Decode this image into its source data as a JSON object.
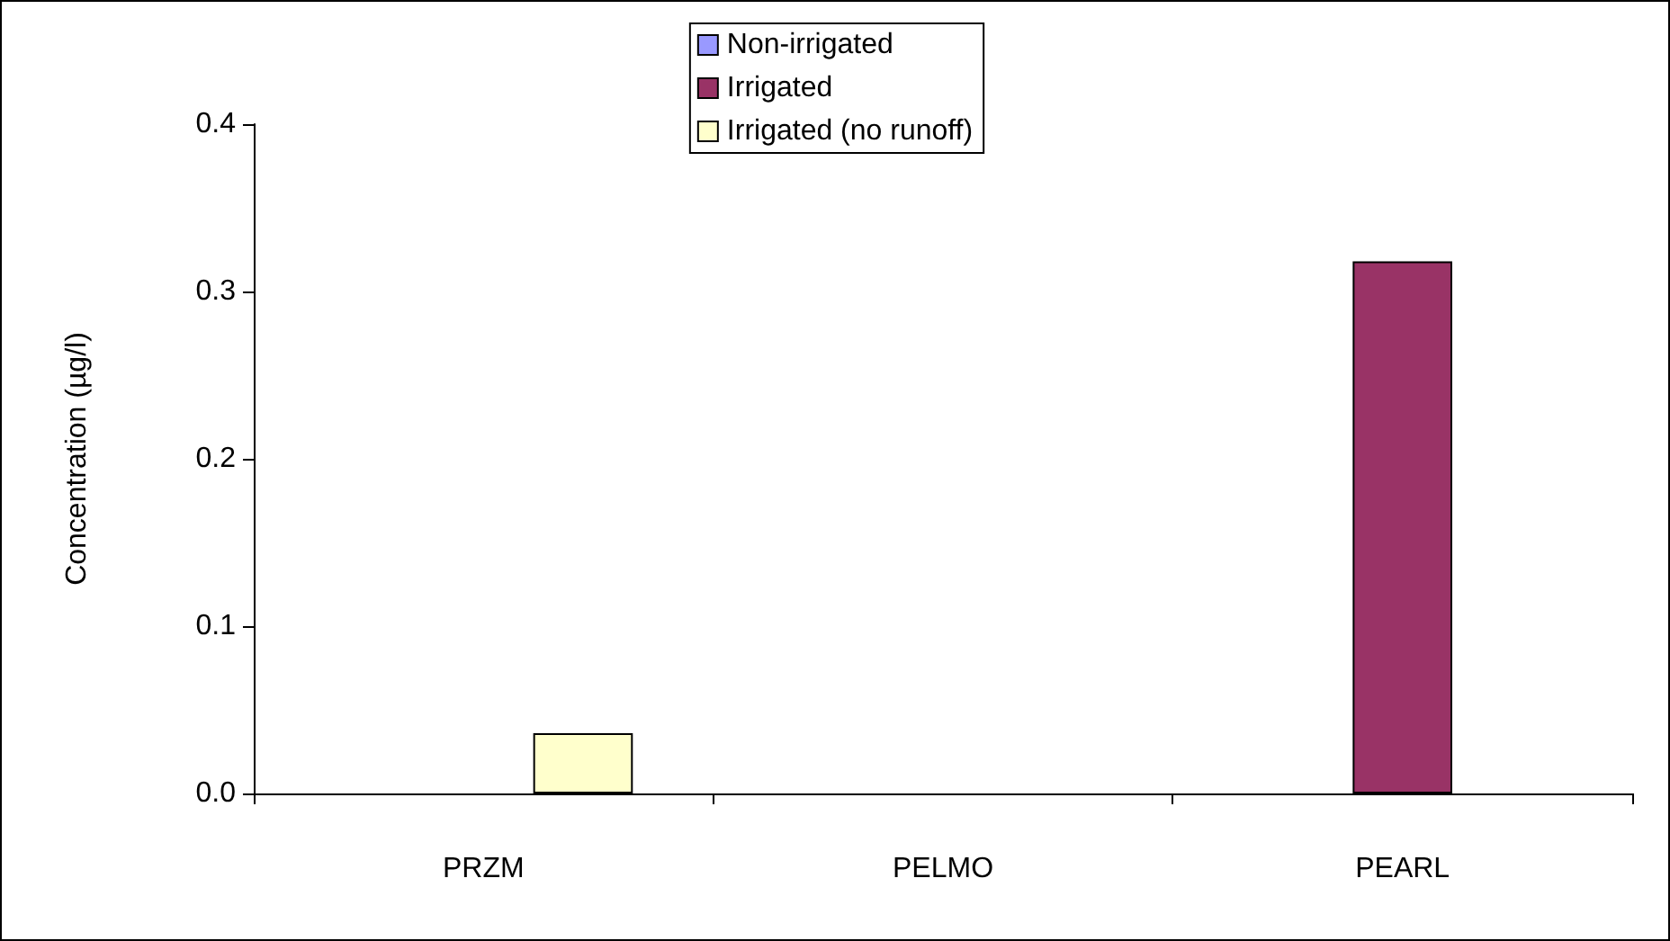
{
  "chart_data": {
    "type": "bar",
    "ylabel": "Concentration (µg/l)",
    "categories": [
      "PRZM",
      "PELMO",
      "PEARL"
    ],
    "series": [
      {
        "name": "Non-irrigated",
        "color": "#9999ff",
        "values": [
          null,
          null,
          null
        ]
      },
      {
        "name": "Irrigated",
        "color": "#993366",
        "values": [
          null,
          null,
          0.318
        ]
      },
      {
        "name": "Irrigated (no runoff)",
        "color": "#ffffcc",
        "values": [
          0.036,
          null,
          null
        ]
      }
    ],
    "ylim": [
      0,
      0.4
    ],
    "yticks": [
      {
        "value": 0,
        "label": "0.0"
      },
      {
        "value": 0.1,
        "label": "0.1"
      },
      {
        "value": 0.2,
        "label": "0.2"
      },
      {
        "value": 0.3,
        "label": "0.3"
      },
      {
        "value": 0.4,
        "label": "0.4"
      }
    ],
    "grid": false,
    "legend": "top"
  }
}
